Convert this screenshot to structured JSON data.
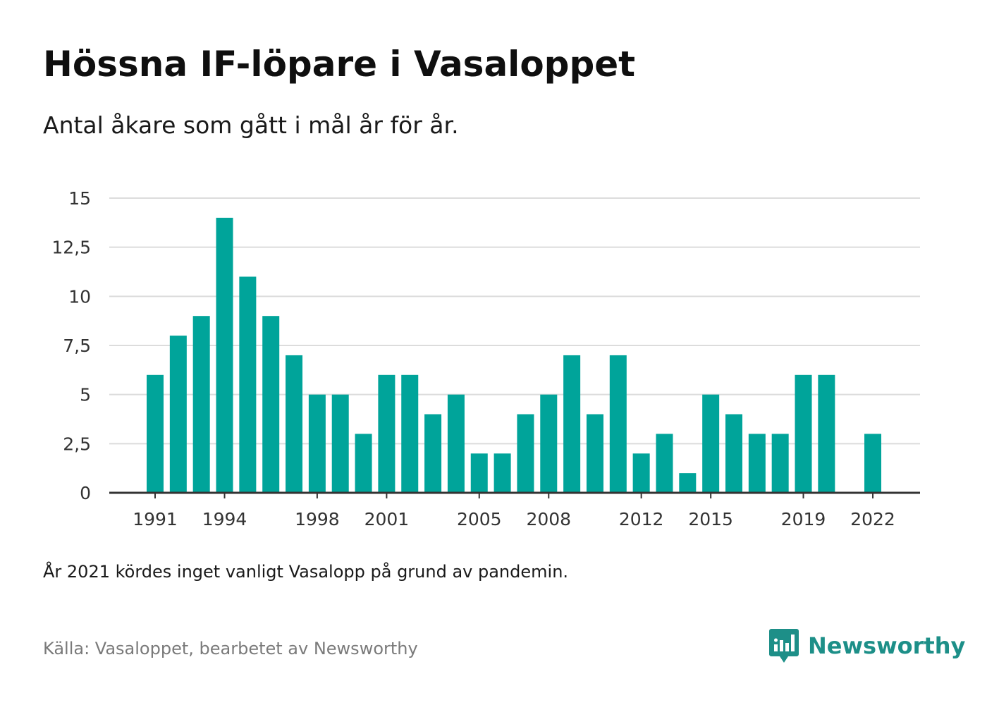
{
  "title": "Hössna IF-löpare i Vasaloppet",
  "subtitle": "Antal åkare som gått i mål år för år.",
  "note": "År 2021 kördes inget vanligt Vasalopp på grund av pandemin.",
  "source": "Källa: Vasaloppet, bearbetet av Newsworthy",
  "brand": {
    "name": "Newsworthy",
    "logo_icon": "newsworthy-bar-chart-logo-icon",
    "color": "#1d8f88"
  },
  "chart_data": {
    "type": "bar",
    "color": "#00a49a",
    "categories": [
      "1991",
      "1992",
      "1993",
      "1994",
      "1995",
      "1996",
      "1997",
      "1998",
      "1999",
      "2000",
      "2001",
      "2002",
      "2003",
      "2004",
      "2005",
      "2006",
      "2007",
      "2008",
      "2009",
      "2010",
      "2011",
      "2012",
      "2013",
      "2014",
      "2015",
      "2016",
      "2017",
      "2018",
      "2019",
      "2020",
      "2021",
      "2022"
    ],
    "values": [
      6,
      8,
      9,
      14,
      11,
      9,
      7,
      5,
      5,
      3,
      6,
      6,
      4,
      5,
      2,
      2,
      4,
      5,
      7,
      4,
      7,
      2,
      3,
      1,
      5,
      4,
      3,
      3,
      6,
      6,
      null,
      3
    ],
    "x_tick_labels": [
      "1991",
      "1994",
      "1998",
      "2001",
      "2005",
      "2008",
      "2012",
      "2015",
      "2019",
      "2022"
    ],
    "y_tick_labels": [
      "0",
      "2,5",
      "5",
      "7,5",
      "10",
      "12,5",
      "15"
    ],
    "y_tick_values": [
      0,
      2.5,
      5,
      7.5,
      10,
      12.5,
      15
    ],
    "ylim": [
      0,
      15
    ],
    "xlabel": "",
    "ylabel": "",
    "grid": true,
    "legend": "none"
  }
}
